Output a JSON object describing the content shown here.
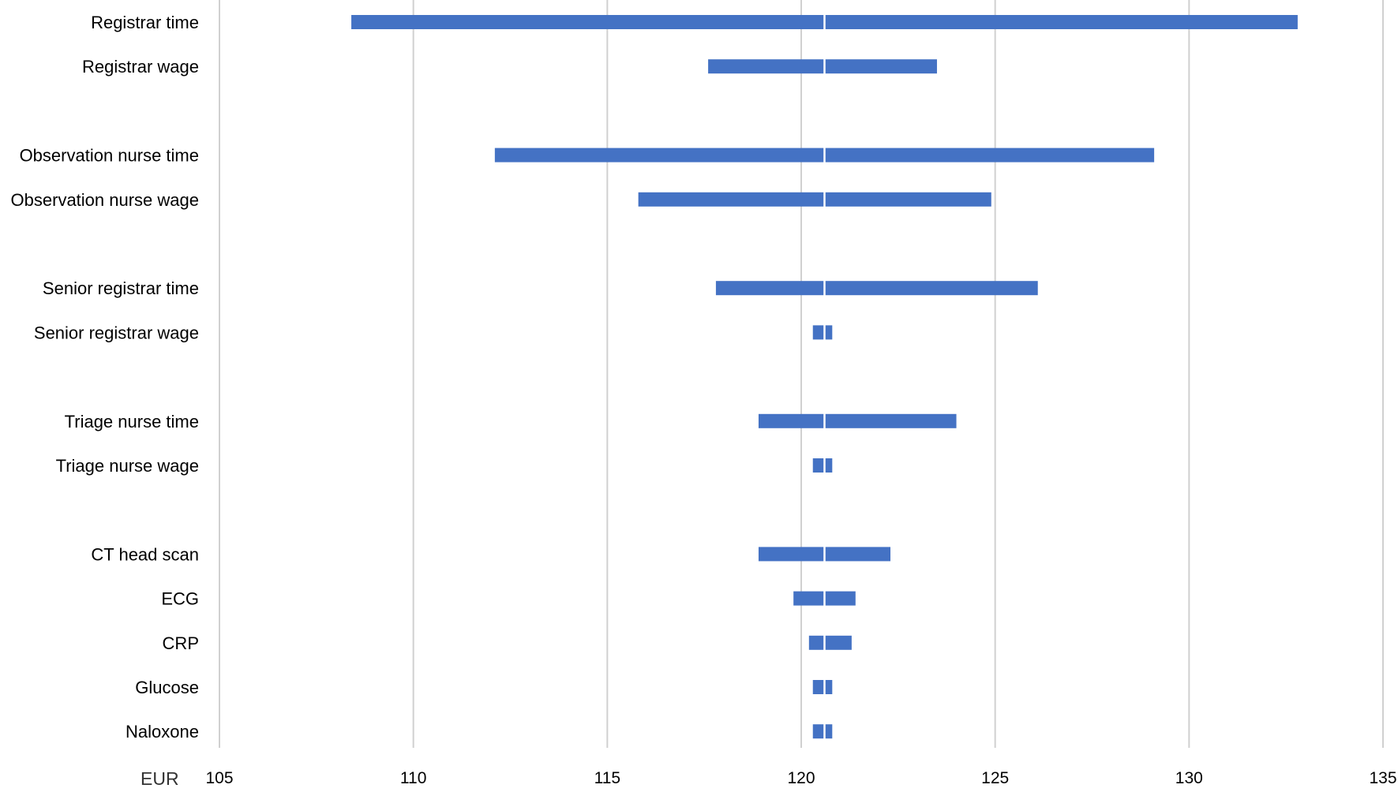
{
  "chart_data": {
    "type": "bar",
    "subtype": "tornado",
    "title": "",
    "xlabel": "EUR",
    "ylabel": "",
    "xlim": [
      105,
      135
    ],
    "x_ticks": [
      105,
      110,
      115,
      120,
      125,
      130,
      135
    ],
    "base_value": 120.6,
    "grid": "vertical",
    "legend": "none",
    "bar_color": "#4472C4",
    "gridline_color": "#D0D0D0",
    "categories": [
      "Registrar time",
      "Registrar wage",
      "",
      "Observation nurse time",
      "Observation nurse wage",
      "",
      "Senior registrar time",
      "Senior registrar wage",
      "",
      "Triage nurse time",
      "Triage nurse wage",
      "",
      "CT head scan",
      "ECG",
      "CRP",
      "Glucose",
      "Naloxone"
    ],
    "series": [
      {
        "low": [
          108.4,
          117.6,
          null,
          112.1,
          115.8,
          null,
          117.8,
          120.3,
          null,
          118.9,
          120.3,
          null,
          118.9,
          119.8,
          120.2,
          120.3,
          120.3
        ],
        "high": [
          132.8,
          123.5,
          null,
          129.1,
          124.9,
          null,
          126.1,
          120.8,
          null,
          124.0,
          120.8,
          null,
          122.3,
          121.4,
          121.3,
          120.8,
          120.8
        ]
      }
    ]
  }
}
